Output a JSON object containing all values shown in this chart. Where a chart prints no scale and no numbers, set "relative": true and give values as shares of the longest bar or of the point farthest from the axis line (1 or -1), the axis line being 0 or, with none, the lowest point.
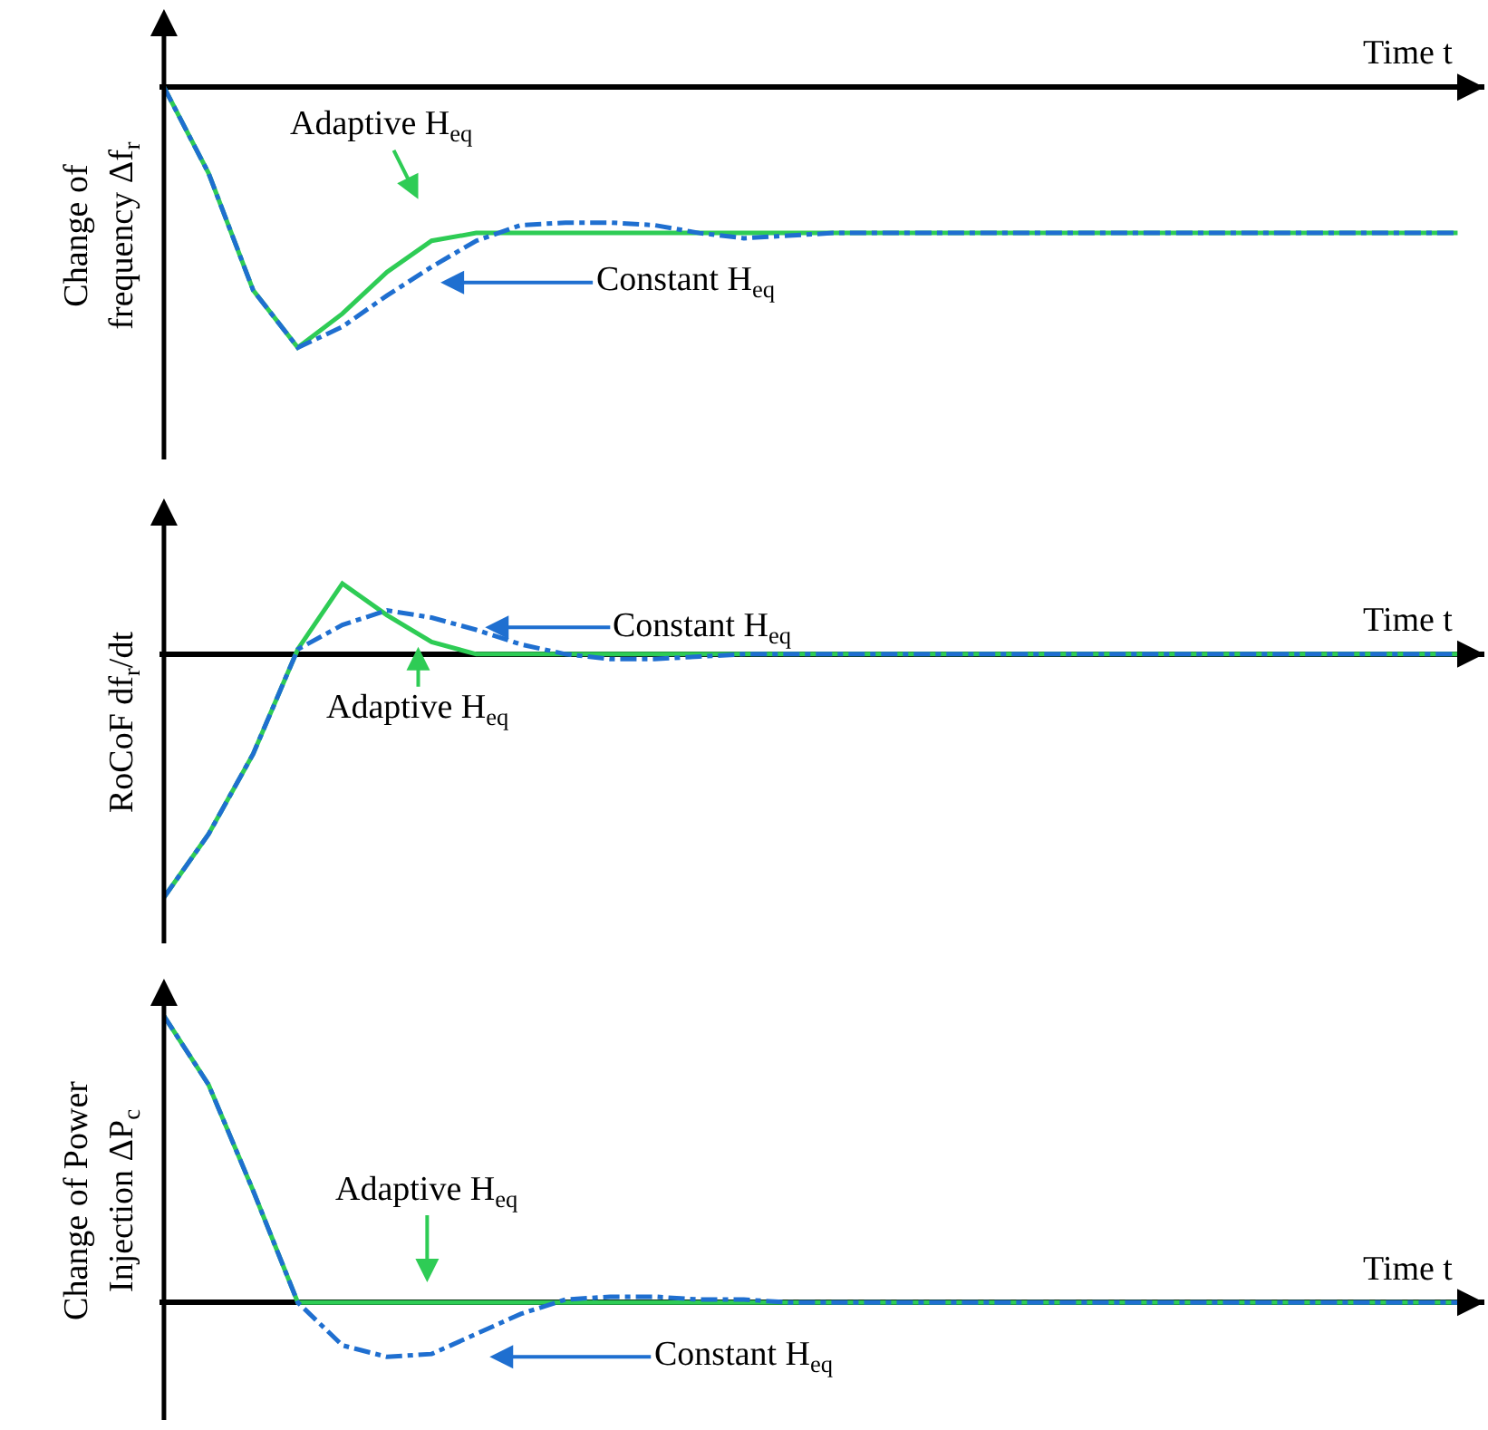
{
  "chart_data": [
    {
      "type": "line",
      "relative": true,
      "xlabel": "Time t",
      "ylabel": "Change of frequency Δf$_{r}$",
      "categories": [
        null,
        null,
        null,
        null,
        null,
        null,
        null,
        null,
        null,
        null,
        null,
        null,
        null,
        null,
        null,
        null,
        null,
        null,
        null,
        null,
        null,
        null,
        null,
        null,
        null,
        null,
        null,
        null,
        null,
        null
      ],
      "series": [
        {
          "color": "#2ecc55",
          "line_style": "solid",
          "values": [
            0.0,
            -0.33,
            -0.78,
            -1.0,
            -0.87,
            -0.71,
            -0.59,
            -0.56,
            -0.56,
            -0.56,
            -0.56,
            -0.56,
            -0.56,
            -0.56,
            -0.56,
            -0.56,
            -0.56,
            -0.56,
            -0.56,
            -0.56,
            -0.56,
            -0.56,
            -0.56,
            -0.56,
            -0.56,
            -0.56,
            -0.56,
            -0.56,
            -0.56,
            -0.56
          ]
        },
        {
          "color": "#1f6fd0",
          "line_style": "dashed",
          "values": [
            0.0,
            -0.33,
            -0.78,
            -1.0,
            -0.92,
            -0.8,
            -0.69,
            -0.59,
            -0.53,
            -0.52,
            -0.52,
            -0.53,
            -0.56,
            -0.58,
            -0.57,
            -0.56,
            -0.56,
            -0.56,
            -0.56,
            -0.56,
            -0.56,
            -0.56,
            -0.56,
            -0.56,
            -0.56,
            -0.56,
            -0.56,
            -0.56,
            -0.56,
            -0.56
          ]
        }
      ],
      "annotations": [
        "Adaptive H$_{eq}$",
        "Constant H$_{eq}$"
      ]
    },
    {
      "type": "line",
      "relative": true,
      "xlabel": "Time t",
      "ylabel": "RoCoF df$_{r}$/dt",
      "categories": [
        null,
        null,
        null,
        null,
        null,
        null,
        null,
        null,
        null,
        null,
        null,
        null,
        null,
        null,
        null,
        null,
        null,
        null,
        null,
        null,
        null,
        null,
        null,
        null,
        null,
        null,
        null,
        null,
        null,
        null
      ],
      "series": [
        {
          "color": "#2ecc55",
          "line_style": "solid",
          "values": [
            -1.0,
            -0.74,
            -0.41,
            0.02,
            0.29,
            0.16,
            0.05,
            0.0,
            0.0,
            0.0,
            0.0,
            0.0,
            0.0,
            0.0,
            0.0,
            0.0,
            0.0,
            0.0,
            0.0,
            0.0,
            0.0,
            0.0,
            0.0,
            0.0,
            0.0,
            0.0,
            0.0,
            0.0,
            0.0,
            0.0
          ]
        },
        {
          "color": "#1f6fd0",
          "line_style": "dashed",
          "values": [
            -1.0,
            -0.74,
            -0.41,
            0.02,
            0.12,
            0.18,
            0.15,
            0.1,
            0.04,
            0.0,
            -0.02,
            -0.02,
            -0.01,
            0.0,
            0.0,
            0.0,
            0.0,
            0.0,
            0.0,
            0.0,
            0.0,
            0.0,
            0.0,
            0.0,
            0.0,
            0.0,
            0.0,
            0.0,
            0.0,
            0.0
          ]
        }
      ],
      "annotations": [
        "Constant H$_{eq}$",
        "Adaptive H$_{eq}$"
      ]
    },
    {
      "type": "line",
      "relative": true,
      "xlabel": "Time t",
      "ylabel": "Change of Power Injection ΔP$_{c}$",
      "categories": [
        null,
        null,
        null,
        null,
        null,
        null,
        null,
        null,
        null,
        null,
        null,
        null,
        null,
        null,
        null,
        null,
        null,
        null,
        null,
        null,
        null,
        null,
        null,
        null,
        null,
        null,
        null,
        null,
        null,
        null
      ],
      "series": [
        {
          "color": "#2ecc55",
          "line_style": "solid",
          "values": [
            1.0,
            0.76,
            0.39,
            0.0,
            0.0,
            0.0,
            0.0,
            0.0,
            0.0,
            0.0,
            0.0,
            0.0,
            0.0,
            0.0,
            0.0,
            0.0,
            0.0,
            0.0,
            0.0,
            0.0,
            0.0,
            0.0,
            0.0,
            0.0,
            0.0,
            0.0,
            0.0,
            0.0,
            0.0,
            0.0
          ]
        },
        {
          "color": "#1f6fd0",
          "line_style": "dashed",
          "values": [
            1.0,
            0.76,
            0.39,
            0.0,
            -0.15,
            -0.19,
            -0.18,
            -0.11,
            -0.04,
            0.01,
            0.02,
            0.02,
            0.01,
            0.01,
            0.0,
            0.0,
            0.0,
            0.0,
            0.0,
            0.0,
            0.0,
            0.0,
            0.0,
            0.0,
            0.0,
            0.0,
            0.0,
            0.0,
            0.0,
            0.0
          ]
        }
      ],
      "annotations": [
        "Adaptive H$_{eq}$",
        "Constant H$_{eq}$"
      ]
    }
  ]
}
